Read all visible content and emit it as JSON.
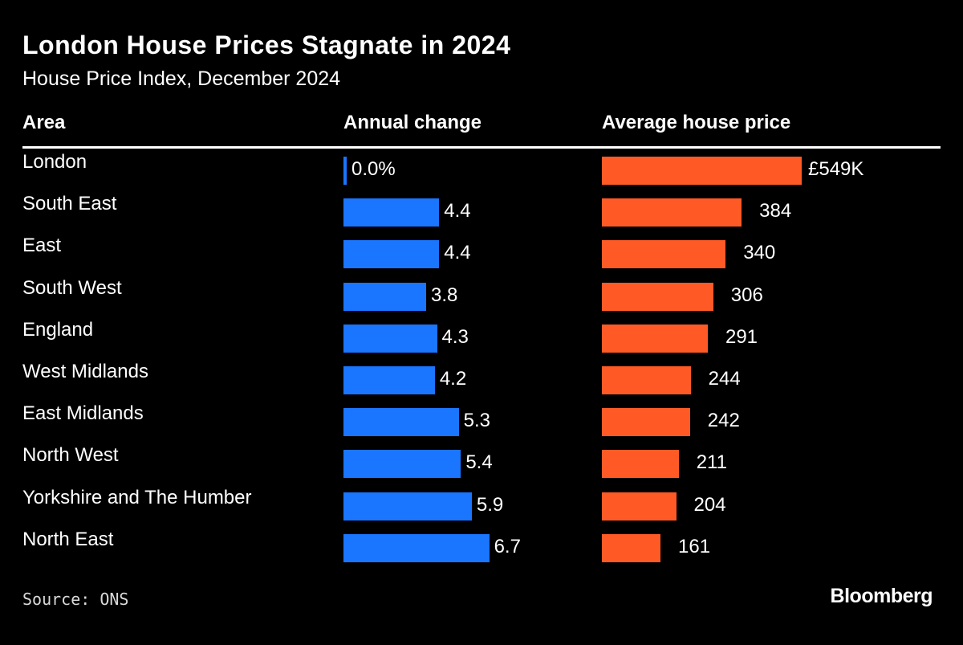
{
  "title": "London House Prices Stagnate in 2024",
  "subtitle": "House Price Index, December 2024",
  "columns": {
    "area": "Area",
    "change": "Annual change",
    "price": "Average house price"
  },
  "source": "Source: ONS",
  "brand": "Bloomberg",
  "colors": {
    "background": "#000000",
    "change_bar": "#1a75ff",
    "price_bar": "#ff5a26",
    "text": "#ffffff"
  },
  "chart_data": {
    "type": "table",
    "title": "London House Prices Stagnate in 2024",
    "subtitle": "House Price Index, December 2024",
    "categories": [
      "London",
      "South East",
      "East",
      "South West",
      "England",
      "West Midlands",
      "East Midlands",
      "North West",
      "Yorkshire and The Humber",
      "North East"
    ],
    "series": [
      {
        "name": "Annual change",
        "unit": "%",
        "values": [
          0.0,
          4.4,
          4.4,
          3.8,
          4.3,
          4.2,
          5.3,
          5.4,
          5.9,
          6.7
        ],
        "labels": [
          "0.0%",
          "4.4",
          "4.4",
          "3.8",
          "4.3",
          "4.2",
          "5.3",
          "5.4",
          "5.9",
          "6.7"
        ]
      },
      {
        "name": "Average house price",
        "unit": "£K",
        "values": [
          549,
          384,
          340,
          306,
          291,
          244,
          242,
          211,
          204,
          161
        ],
        "labels": [
          "£549K",
          "384",
          "340",
          "306",
          "291",
          "244",
          "242",
          "211",
          "204",
          "161"
        ]
      }
    ]
  }
}
